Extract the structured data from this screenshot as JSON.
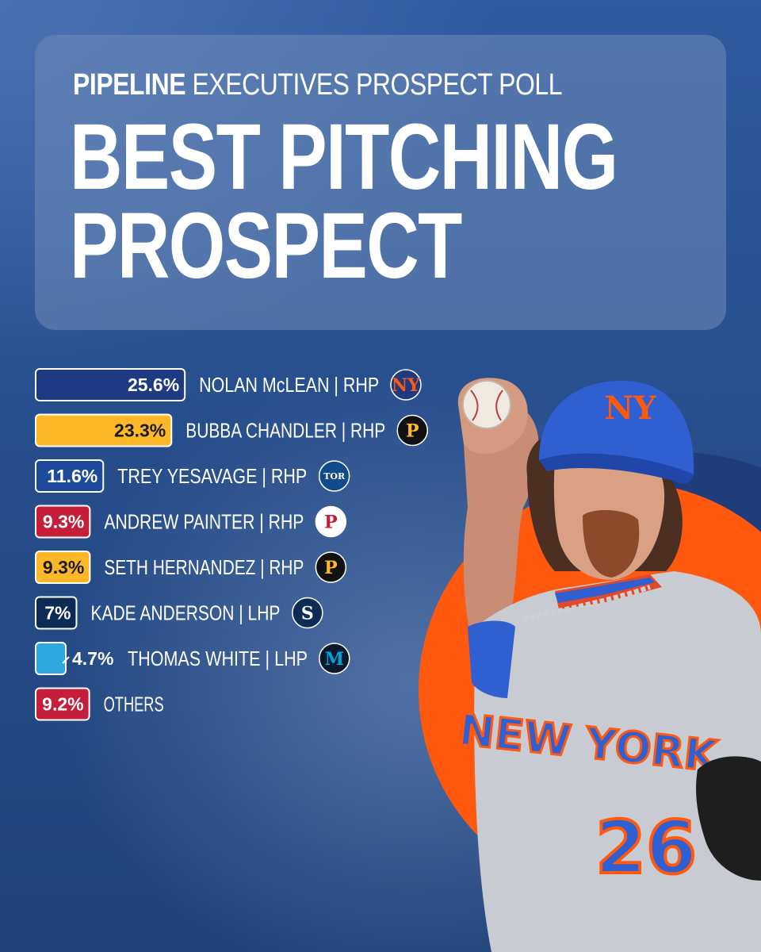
{
  "header": {
    "brand": "PIPELINE",
    "subtitle": "EXECUTIVES PROSPECT POLL",
    "title_line1": "BEST PITCHING",
    "title_line2": "PROSPECT"
  },
  "colors": {
    "mets_navy": "#1d3a82",
    "pirates_gold": "#fdb827",
    "bluejays_blue": "#1d4b99",
    "phillies_red": "#c41e3a",
    "mariners_navy": "#0c2c56",
    "marlins_blue": "#00a3e0",
    "accent_orange": "#ff5910"
  },
  "chart_data": {
    "type": "bar",
    "orientation": "horizontal",
    "categories": [
      "NOLAN McLEAN | RHP",
      "BUBBA CHANDLER | RHP",
      "TREY YESAVAGE | RHP",
      "ANDREW PAINTER | RHP",
      "SETH HERNANDEZ | RHP",
      "KADE ANDERSON | LHP",
      "THOMAS WHITE | LHP",
      "OTHERS"
    ],
    "values": [
      25.6,
      23.3,
      11.6,
      9.3,
      9.3,
      7,
      4.7,
      9.2
    ],
    "value_labels": [
      "25.6%",
      "23.3%",
      "11.6%",
      "9.3%",
      "9.3%",
      "7%",
      "4.7%",
      "9.2%"
    ],
    "bar_colors": [
      "#1d3a82",
      "#fdb827",
      "#1d4b99",
      "#c41e3a",
      "#fdb827",
      "#0c2c56",
      "#2fa8e0",
      "#c41e3a"
    ],
    "label_colors": [
      "#ffffff",
      "#1a1a1a",
      "#ffffff",
      "#ffffff",
      "#1a1a1a",
      "#ffffff",
      "#ffffff",
      "#ffffff"
    ],
    "teams": [
      "mets-logo-icon",
      "pirates-logo-icon",
      "blue-jays-logo-icon",
      "phillies-logo-icon",
      "pirates-logo-icon",
      "mariners-logo-icon",
      "marlins-logo-icon",
      ""
    ],
    "legend": "none",
    "grid": false
  },
  "player": {
    "jersey_text": "NEW YORK",
    "jersey_number": "26"
  }
}
